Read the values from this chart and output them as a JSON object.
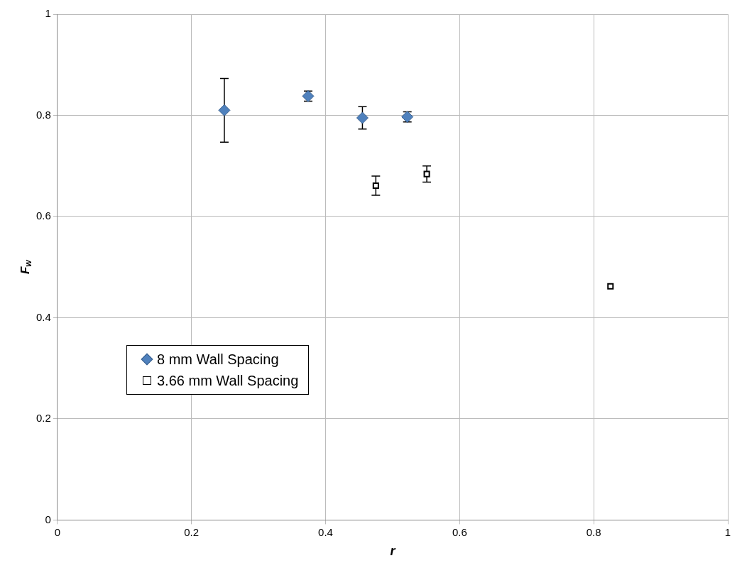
{
  "chart_data": {
    "type": "scatter",
    "xlabel": "r",
    "ylabel": "F$_{w}$",
    "xlim": [
      0,
      1
    ],
    "ylim": [
      0,
      1
    ],
    "xticks": [
      0,
      0.2,
      0.4,
      0.6,
      0.8,
      1
    ],
    "yticks": [
      0,
      0.2,
      0.4,
      0.6,
      0.8,
      1
    ],
    "grid": true,
    "legend": "bottom left",
    "series": [
      {
        "name": "8 mm Wall Spacing",
        "color": "#4f81bd",
        "marker": "diamond",
        "x": [
          0.249,
          0.374,
          0.455,
          0.522
        ],
        "values": [
          0.81,
          0.838,
          0.795,
          0.797
        ],
        "errors": [
          0.063,
          0.01,
          0.022,
          0.01
        ]
      },
      {
        "name": "3.66 mm Wall Spacing",
        "color": "#000000",
        "marker": "square",
        "x": [
          0.475,
          0.551,
          0.825
        ],
        "values": [
          0.661,
          0.684,
          0.462
        ],
        "errors": [
          0.019,
          0.016,
          null
        ]
      }
    ]
  }
}
